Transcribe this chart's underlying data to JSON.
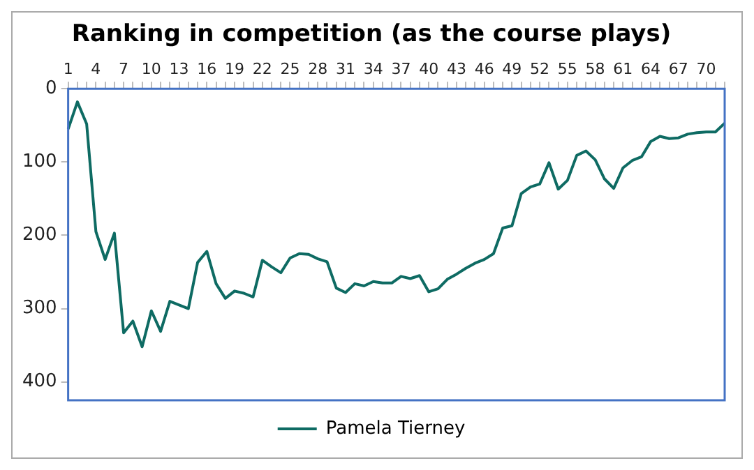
{
  "chart_data": {
    "type": "line",
    "title": "Ranking in competition (as the course plays)",
    "categories": [
      "1",
      null,
      null,
      "4",
      null,
      null,
      "7",
      null,
      null,
      "10",
      null,
      null,
      "13",
      null,
      null,
      "16",
      null,
      null,
      "19",
      null,
      null,
      "22",
      null,
      null,
      "25",
      null,
      null,
      "28",
      null,
      null,
      "31",
      null,
      null,
      "34",
      null,
      null,
      "37",
      null,
      null,
      "40",
      null,
      null,
      "43",
      null,
      null,
      "46",
      null,
      null,
      "49",
      null,
      null,
      "52",
      null,
      null,
      "55",
      null,
      null,
      "58",
      null,
      null,
      "61",
      null,
      null,
      "64",
      null,
      null,
      "67",
      null,
      null,
      "70",
      null,
      null
    ],
    "series": [
      {
        "name": "Pamela Tierney",
        "color": "#0e6b63",
        "values": [
          55,
          18,
          48,
          195,
          233,
          197,
          333,
          317,
          352,
          303,
          331,
          290,
          295,
          300,
          237,
          222,
          266,
          286,
          276,
          279,
          284,
          234,
          243,
          251,
          231,
          225,
          226,
          232,
          236,
          272,
          278,
          266,
          269,
          263,
          265,
          265,
          256,
          259,
          255,
          277,
          273,
          260,
          253,
          245,
          238,
          233,
          225,
          190,
          187,
          143,
          134,
          130,
          101,
          137,
          125,
          91,
          85,
          97,
          123,
          136,
          108,
          98,
          93,
          72,
          65,
          68,
          67,
          62,
          60,
          59,
          59,
          47
        ]
      }
    ],
    "ylim": [
      425,
      0
    ],
    "yticks": [
      0,
      100,
      200,
      300,
      400
    ],
    "legend": "bottom",
    "marker": "none",
    "line_style": "solid"
  }
}
